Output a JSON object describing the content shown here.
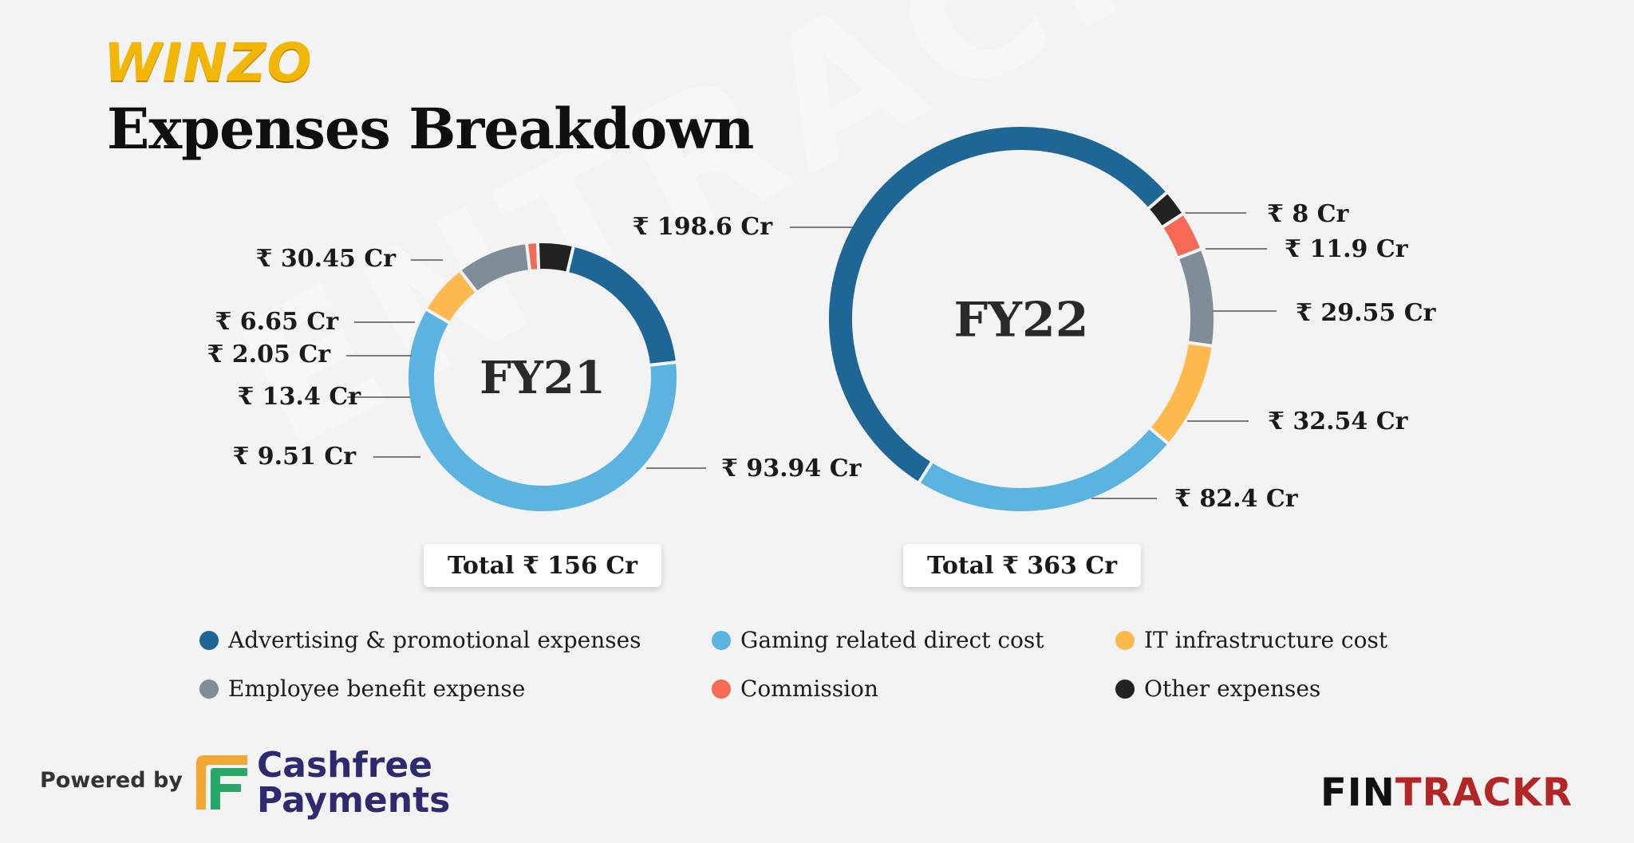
{
  "brand": {
    "logo_text": "WINZO"
  },
  "page_title": "Expenses Breakdown",
  "watermark_text": "ENTRACKR",
  "colors": {
    "advertising": "#1d6696",
    "gaming": "#5ab4df",
    "it_infra": "#fdb94e",
    "employee": "#7e8d98",
    "commission": "#f46a55",
    "other": "#222222"
  },
  "chart_data": [
    {
      "type": "pie",
      "center_label": "FY21",
      "total_label": "Total ₹ 156 Cr",
      "slices": [
        {
          "category": "Advertising & promotional expenses",
          "value": 30.45,
          "label": "₹ 30.45 Cr",
          "color": "#1d6696"
        },
        {
          "category": "Gaming related direct cost",
          "value": 93.94,
          "label": "₹ 93.94 Cr",
          "color": "#5ab4df"
        },
        {
          "category": "IT infrastructure cost",
          "value": 9.51,
          "label": "₹ 9.51 Cr",
          "color": "#fdb94e"
        },
        {
          "category": "Employee benefit expense",
          "value": 13.4,
          "label": "₹ 13.4 Cr",
          "color": "#7e8d98"
        },
        {
          "category": "Commission",
          "value": 2.05,
          "label": "₹ 2.05 Cr",
          "color": "#f46a55"
        },
        {
          "category": "Other expenses",
          "value": 6.65,
          "label": "₹ 6.65 Cr",
          "color": "#222222"
        }
      ]
    },
    {
      "type": "pie",
      "center_label": "FY22",
      "total_label": "Total ₹ 363 Cr",
      "slices": [
        {
          "category": "Other expenses",
          "value": 8,
          "label": "₹ 8 Cr",
          "color": "#222222"
        },
        {
          "category": "Commission",
          "value": 11.9,
          "label": "₹ 11.9 Cr",
          "color": "#f46a55"
        },
        {
          "category": "Employee benefit expense",
          "value": 29.55,
          "label": "₹ 29.55 Cr",
          "color": "#7e8d98"
        },
        {
          "category": "IT infrastructure cost",
          "value": 32.54,
          "label": "₹ 32.54 Cr",
          "color": "#fdb94e"
        },
        {
          "category": "Gaming related direct cost",
          "value": 82.4,
          "label": "₹ 82.4 Cr",
          "color": "#5ab4df"
        },
        {
          "category": "Advertising & promotional expenses",
          "value": 198.6,
          "label": "₹ 198.6 Cr",
          "color": "#1d6696"
        }
      ]
    }
  ],
  "legend": [
    {
      "label": "Advertising & promotional expenses",
      "color": "#1d6696"
    },
    {
      "label": "Gaming related direct cost",
      "color": "#5ab4df"
    },
    {
      "label": "IT infrastructure cost",
      "color": "#fdb94e"
    },
    {
      "label": "Employee benefit expense",
      "color": "#7e8d98"
    },
    {
      "label": "Commission",
      "color": "#f46a55"
    },
    {
      "label": "Other expenses",
      "color": "#222222"
    }
  ],
  "footer": {
    "powered_by": "Powered by",
    "sponsor_line1": "Cashfree",
    "sponsor_line2": "Payments",
    "fintrackr_part1": "FIN",
    "fintrackr_part2": "TRACKR"
  }
}
